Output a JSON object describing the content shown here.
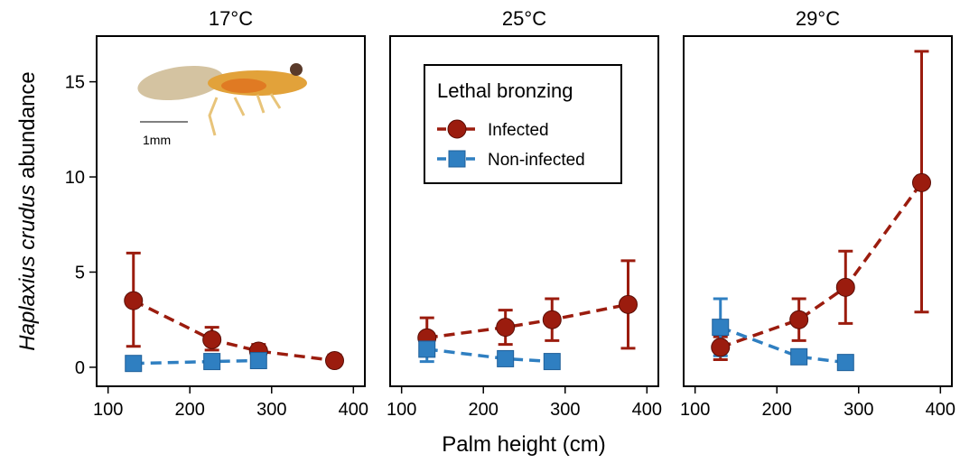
{
  "chart_data": [
    {
      "type": "line",
      "title": "17°C",
      "ylabel": [
        "Haplaxius crudus",
        "abundance"
      ],
      "annotations": [
        "1mm"
      ],
      "xlim": [
        86,
        414
      ],
      "ylim": [
        -1,
        17.4
      ],
      "xticks": [
        100,
        200,
        300,
        400
      ],
      "yticks": [
        0,
        5,
        10,
        15
      ],
      "series": [
        {
          "color": "#9b1c0e",
          "marker": "circle",
          "x": [
            131,
            227,
            284,
            377
          ],
          "values": [
            3.5,
            1.45,
            0.85,
            0.35
          ],
          "lower": [
            1.1,
            0.9,
            0.5,
            0.1
          ],
          "upper": [
            6.0,
            2.1,
            1.2,
            0.65
          ]
        },
        {
          "color": "#2f7fc1",
          "marker": "square",
          "x": [
            131,
            227,
            284
          ],
          "values": [
            0.2,
            0.3,
            0.35
          ],
          "lower": [
            0.1,
            0.2,
            0.0
          ],
          "upper": [
            0.3,
            0.45,
            0.7
          ]
        }
      ]
    },
    {
      "type": "line",
      "title": "25°C",
      "xlabel": "Palm height (cm)",
      "legend": "upper left",
      "legend_title": "Lethal bronzing",
      "xlim": [
        86,
        414
      ],
      "ylim": [
        -1,
        17.4
      ],
      "xticks": [
        100,
        200,
        300,
        400
      ],
      "series": [
        {
          "name": "Infected",
          "color": "#9b1c0e",
          "marker": "circle",
          "x": [
            131,
            227,
            284,
            377
          ],
          "values": [
            1.55,
            2.1,
            2.5,
            3.3
          ],
          "lower": [
            0.9,
            1.2,
            1.4,
            1.0
          ],
          "upper": [
            2.6,
            3.0,
            3.6,
            5.6
          ]
        },
        {
          "name": "Non-infected",
          "color": "#2f7fc1",
          "marker": "square",
          "x": [
            131,
            227,
            284
          ],
          "values": [
            0.95,
            0.45,
            0.3
          ],
          "lower": [
            0.3,
            0.3,
            0.2
          ],
          "upper": [
            1.5,
            0.6,
            0.4
          ]
        }
      ]
    },
    {
      "type": "line",
      "title": "29°C",
      "xlim": [
        86,
        414
      ],
      "ylim": [
        -1,
        17.4
      ],
      "xticks": [
        100,
        200,
        300,
        400
      ],
      "series": [
        {
          "color": "#9b1c0e",
          "marker": "circle",
          "x": [
            131,
            227,
            284,
            377
          ],
          "values": [
            1.05,
            2.5,
            4.2,
            9.7
          ],
          "lower": [
            0.4,
            1.4,
            2.3,
            2.9
          ],
          "upper": [
            1.6,
            3.6,
            6.1,
            16.6
          ]
        },
        {
          "color": "#2f7fc1",
          "marker": "square",
          "x": [
            131,
            227,
            284
          ],
          "values": [
            2.1,
            0.55,
            0.25
          ],
          "lower": [
            0.6,
            0.35,
            0.15
          ],
          "upper": [
            3.6,
            0.7,
            0.35
          ]
        }
      ]
    }
  ]
}
